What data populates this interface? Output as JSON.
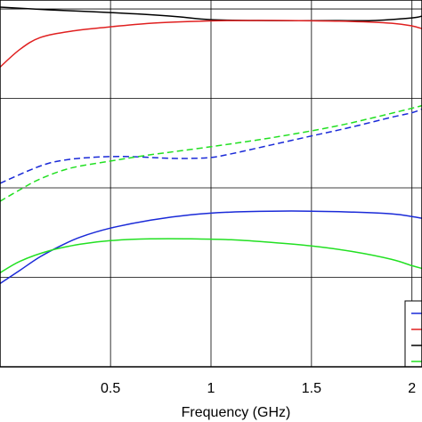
{
  "chart_data": {
    "type": "line",
    "xlabel": "Frequency (GHz)",
    "ylabel": "",
    "xlim": [
      -0.05,
      2.05
    ],
    "ylim": [
      0,
      4.1
    ],
    "grid": true,
    "x_ticks": [
      0.5,
      1,
      1.5,
      2
    ],
    "x_tick_labels": [
      "0.5",
      "1",
      "1.5",
      "2"
    ],
    "legend_position": "bottom-right (clipped)",
    "series": [
      {
        "color": "#000000",
        "dash": "solid",
        "x": [
          -0.05,
          0.2,
          0.5,
          0.8,
          1.0,
          1.3,
          1.6,
          1.8,
          2.0,
          2.05
        ],
        "y": [
          4.02,
          3.99,
          3.96,
          3.92,
          3.88,
          3.87,
          3.87,
          3.87,
          3.9,
          3.92
        ]
      },
      {
        "color": "#e02020",
        "dash": "solid",
        "x": [
          -0.05,
          0.05,
          0.15,
          0.3,
          0.5,
          0.7,
          0.9,
          1.1,
          1.4,
          1.7,
          1.9,
          2.0,
          2.05
        ],
        "y": [
          3.35,
          3.55,
          3.68,
          3.75,
          3.8,
          3.84,
          3.86,
          3.87,
          3.87,
          3.86,
          3.84,
          3.81,
          3.78
        ]
      },
      {
        "color": "#1a2ad8",
        "dash": "dashed",
        "x": [
          -0.05,
          0.1,
          0.2,
          0.3,
          0.4,
          0.5,
          0.6,
          0.7,
          0.8,
          0.9,
          1.0,
          1.1,
          1.3,
          1.5,
          1.7,
          1.9,
          2.0,
          2.05
        ],
        "y": [
          2.05,
          2.2,
          2.28,
          2.32,
          2.34,
          2.35,
          2.35,
          2.34,
          2.33,
          2.33,
          2.34,
          2.38,
          2.48,
          2.58,
          2.68,
          2.79,
          2.84,
          2.88
        ]
      },
      {
        "color": "#22e022",
        "dash": "dashed",
        "x": [
          -0.05,
          0.05,
          0.15,
          0.3,
          0.5,
          0.7,
          1.0,
          1.3,
          1.6,
          1.8,
          2.0,
          2.05
        ],
        "y": [
          1.85,
          1.98,
          2.1,
          2.22,
          2.3,
          2.37,
          2.46,
          2.56,
          2.68,
          2.78,
          2.89,
          2.92
        ]
      },
      {
        "color": "#1a2ad8",
        "dash": "solid",
        "x": [
          -0.05,
          0.05,
          0.15,
          0.25,
          0.35,
          0.5,
          0.7,
          0.9,
          1.1,
          1.3,
          1.5,
          1.7,
          1.9,
          2.0,
          2.05
        ],
        "y": [
          0.93,
          1.08,
          1.23,
          1.35,
          1.45,
          1.55,
          1.64,
          1.7,
          1.73,
          1.74,
          1.74,
          1.73,
          1.71,
          1.68,
          1.66
        ]
      },
      {
        "color": "#22e022",
        "dash": "solid",
        "x": [
          -0.05,
          0.05,
          0.2,
          0.35,
          0.5,
          0.7,
          0.9,
          1.1,
          1.3,
          1.5,
          1.7,
          1.9,
          2.0,
          2.05
        ],
        "y": [
          1.05,
          1.18,
          1.3,
          1.37,
          1.41,
          1.43,
          1.43,
          1.42,
          1.39,
          1.35,
          1.29,
          1.2,
          1.13,
          1.1
        ]
      }
    ]
  }
}
